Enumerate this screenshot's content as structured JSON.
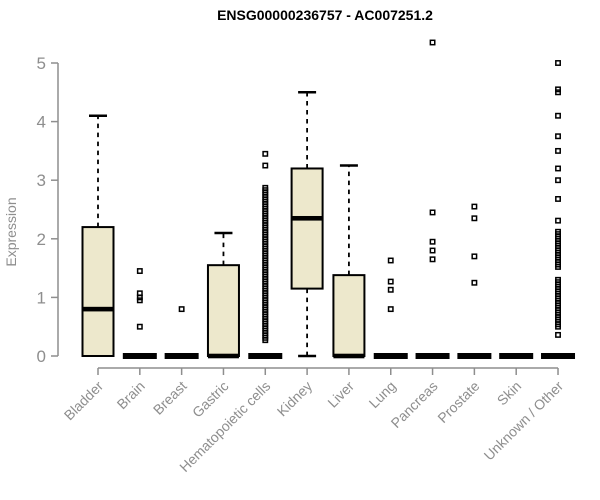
{
  "chart_data": {
    "type": "boxplot",
    "title": "ENSG00000236757 - AC007251.2",
    "ylabel": "Expression",
    "xlabel": "",
    "ylim": [
      0,
      5
    ],
    "yticks": [
      0,
      1,
      2,
      3,
      4,
      5
    ],
    "grid_on": false,
    "legend": "none",
    "colors": {
      "box_fill": "#ede8cc",
      "box_stroke": "#000000",
      "median": "#000000",
      "axis": "#8e8e8e",
      "title": "#000000"
    },
    "categories": [
      "Bladder",
      "Brain",
      "Breast",
      "Gastric",
      "Hematopoietic cells",
      "Kidney",
      "Liver",
      "Lung",
      "Pancreas",
      "Prostate",
      "Skin",
      "Unknown / Other"
    ],
    "series": [
      {
        "name": "Bladder",
        "whisker_low": 0,
        "q1": 0,
        "median": 0.8,
        "q3": 2.2,
        "whisker_high": 4.1,
        "outliers": []
      },
      {
        "name": "Brain",
        "whisker_low": 0,
        "q1": 0,
        "median": 0,
        "q3": 0,
        "whisker_high": 0,
        "outliers": [
          1.45,
          1.07,
          1.0,
          0.95,
          0.5
        ]
      },
      {
        "name": "Breast",
        "whisker_low": 0,
        "q1": 0,
        "median": 0,
        "q3": 0,
        "whisker_high": 0,
        "outliers": [
          0.8
        ]
      },
      {
        "name": "Gastric",
        "whisker_low": 0,
        "q1": 0,
        "median": 0,
        "q3": 1.55,
        "whisker_high": 2.1,
        "outliers": []
      },
      {
        "name": "Hematopoietic cells",
        "whisker_low": 0,
        "q1": 0,
        "median": 0,
        "q3": 0,
        "whisker_high": 0,
        "outliers": [
          3.45,
          3.25,
          2.87,
          2.83,
          2.79,
          2.75,
          2.71,
          2.67,
          2.63,
          2.59,
          2.55,
          2.51,
          2.47,
          2.43,
          2.39,
          2.35,
          2.31,
          2.27,
          2.23,
          2.19,
          2.15,
          2.11,
          2.07,
          2.03,
          1.99,
          1.95,
          1.91,
          1.87,
          1.83,
          1.79,
          1.75,
          1.71,
          1.67,
          1.63,
          1.59,
          1.55,
          1.51,
          1.47,
          1.43,
          1.39,
          1.35,
          1.31,
          1.27,
          1.23,
          1.19,
          1.15,
          1.11,
          1.07,
          1.03,
          0.99,
          0.95,
          0.91,
          0.87,
          0.83,
          0.79,
          0.75,
          0.71,
          0.67,
          0.63,
          0.59,
          0.55,
          0.51,
          0.47,
          0.43,
          0.39,
          0.35,
          0.31,
          0.27
        ]
      },
      {
        "name": "Kidney",
        "whisker_low": 0,
        "q1": 1.15,
        "median": 2.35,
        "q3": 3.2,
        "whisker_high": 4.5,
        "outliers": []
      },
      {
        "name": "Liver",
        "whisker_low": 0,
        "q1": 0,
        "median": 0,
        "q3": 1.38,
        "whisker_high": 3.25,
        "outliers": []
      },
      {
        "name": "Lung",
        "whisker_low": 0,
        "q1": 0,
        "median": 0,
        "q3": 0,
        "whisker_high": 0,
        "outliers": [
          1.63,
          1.27,
          1.13,
          0.8
        ]
      },
      {
        "name": "Pancreas",
        "whisker_low": 0,
        "q1": 0,
        "median": 0,
        "q3": 0,
        "whisker_high": 0,
        "outliers": [
          5.35,
          2.45,
          1.95,
          1.8,
          1.65
        ]
      },
      {
        "name": "Prostate",
        "whisker_low": 0,
        "q1": 0,
        "median": 0,
        "q3": 0,
        "whisker_high": 0,
        "outliers": [
          2.55,
          2.35,
          1.7,
          1.25
        ]
      },
      {
        "name": "Skin",
        "whisker_low": 0,
        "q1": 0,
        "median": 0,
        "q3": 0,
        "whisker_high": 0,
        "outliers": []
      },
      {
        "name": "Unknown / Other",
        "whisker_low": 0,
        "q1": 0,
        "median": 0,
        "q3": 0,
        "whisker_high": 0,
        "outliers": [
          5.0,
          4.55,
          4.5,
          4.1,
          3.75,
          3.5,
          3.2,
          3.0,
          2.68,
          2.31,
          2.12,
          2.08,
          2.04,
          2.0,
          1.96,
          1.92,
          1.88,
          1.84,
          1.8,
          1.76,
          1.72,
          1.68,
          1.64,
          1.6,
          1.56,
          1.52,
          1.3,
          1.26,
          1.22,
          1.18,
          1.14,
          1.1,
          1.06,
          1.02,
          0.98,
          0.94,
          0.9,
          0.86,
          0.82,
          0.78,
          0.74,
          0.7,
          0.66,
          0.62,
          0.58,
          0.54,
          0.5,
          0.36
        ]
      }
    ]
  }
}
